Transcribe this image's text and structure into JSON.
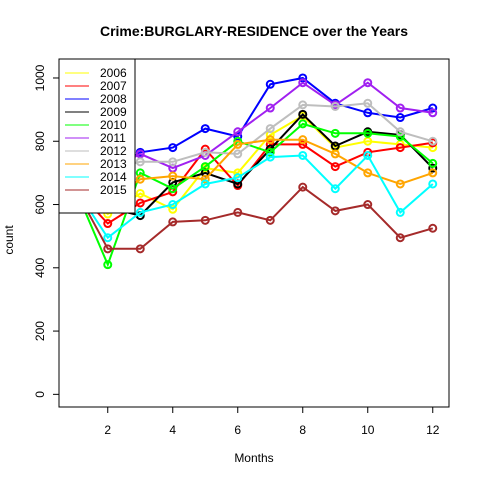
{
  "chart_data": {
    "type": "line",
    "title": "Crime:BURGLARY-RESIDENCE over the Years",
    "xlabel": "Months",
    "ylabel": "count",
    "xlim": [
      0.5,
      12.5
    ],
    "ylim": [
      -40,
      1060
    ],
    "x_ticks": [
      2,
      4,
      6,
      8,
      10,
      12
    ],
    "y_ticks": [
      0,
      200,
      400,
      600,
      800,
      1000
    ],
    "legend_position": "top-left",
    "grid": false,
    "x": [
      1,
      2,
      3,
      4,
      5,
      6,
      7,
      8,
      9,
      10,
      11,
      12
    ],
    "series": [
      {
        "name": "2006",
        "color": "#ffff00",
        "values": [
          650,
          570,
          635,
          585,
          715,
          700,
          820,
          880,
          780,
          800,
          790,
          780
        ]
      },
      {
        "name": "2007",
        "color": "#ff0000",
        "values": [
          650,
          540,
          605,
          640,
          775,
          660,
          790,
          790,
          720,
          765,
          780,
          795
        ]
      },
      {
        "name": "2008",
        "color": "#0000ff",
        "values": [
          650,
          700,
          765,
          780,
          840,
          815,
          980,
          1000,
          920,
          890,
          875,
          905
        ]
      },
      {
        "name": "2009",
        "color": "#000000",
        "values": [
          650,
          590,
          565,
          670,
          700,
          665,
          775,
          885,
          785,
          830,
          820,
          715
        ]
      },
      {
        "name": "2010",
        "color": "#00ff00",
        "values": [
          650,
          410,
          700,
          650,
          720,
          800,
          765,
          855,
          825,
          825,
          815,
          730
        ]
      },
      {
        "name": "2011",
        "color": "#a020f0",
        "values": [
          650,
          705,
          760,
          715,
          755,
          830,
          905,
          985,
          915,
          985,
          905,
          890
        ]
      },
      {
        "name": "2012",
        "color": "#bebebe",
        "values": [
          650,
          710,
          735,
          735,
          765,
          760,
          840,
          915,
          910,
          920,
          830,
          800
        ]
      },
      {
        "name": "2013",
        "color": "#ffa500",
        "values": [
          650,
          610,
          680,
          690,
          680,
          790,
          805,
          805,
          760,
          700,
          665,
          700
        ]
      },
      {
        "name": "2014",
        "color": "#00ffff",
        "values": [
          650,
          495,
          575,
          600,
          665,
          685,
          750,
          755,
          650,
          755,
          575,
          665
        ]
      },
      {
        "name": "2015",
        "color": "#a52a2a",
        "values": [
          650,
          460,
          460,
          545,
          550,
          575,
          550,
          655,
          580,
          600,
          495,
          525
        ]
      }
    ]
  }
}
